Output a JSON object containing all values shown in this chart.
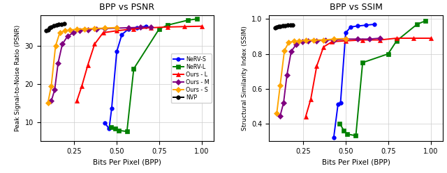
{
  "title_left": "BPP vs PSNR",
  "title_right": "BPP vs SSIM",
  "xlabel": "Bits Per Pixel (BPP)",
  "ylabel_left": "Peak Signal-to-Noise Ratio (PSNR)",
  "ylabel_right": "Structural Similarity Index (SSIM)",
  "nerv_s_bpp": [
    0.43,
    0.455,
    0.47,
    0.5,
    0.53,
    0.57,
    0.62,
    0.67
  ],
  "nerv_s_psnr": [
    9.8,
    8.2,
    13.5,
    28.5,
    33.0,
    34.5,
    34.8,
    35.2
  ],
  "nerv_s_ssim": [
    0.32,
    0.51,
    0.52,
    0.92,
    0.955,
    0.96,
    0.965,
    0.97
  ],
  "nerv_l_bpp": [
    0.465,
    0.49,
    0.51,
    0.56,
    0.6,
    0.75,
    0.8,
    0.92,
    0.97
  ],
  "nerv_l_psnr": [
    8.7,
    8.2,
    7.8,
    7.5,
    24.0,
    34.5,
    35.5,
    36.8,
    37.1
  ],
  "nerv_l_ssim": [
    0.4,
    0.36,
    0.34,
    0.33,
    0.75,
    0.8,
    0.875,
    0.97,
    0.99
  ],
  "ours_l_bpp": [
    0.265,
    0.295,
    0.33,
    0.37,
    0.42,
    0.5,
    0.6,
    0.7,
    0.8,
    0.9,
    1.0
  ],
  "ours_l_psnr": [
    15.5,
    19.5,
    25.0,
    30.5,
    33.5,
    34.0,
    34.5,
    34.8,
    35.0,
    35.1,
    35.2
  ],
  "ours_l_ssim": [
    0.44,
    0.54,
    0.73,
    0.84,
    0.87,
    0.875,
    0.88,
    0.88,
    0.89,
    0.89,
    0.89
  ],
  "ours_m_bpp": [
    0.115,
    0.135,
    0.155,
    0.18,
    0.21,
    0.245,
    0.28,
    0.33,
    0.38,
    0.43,
    0.5,
    0.57,
    0.64,
    0.7
  ],
  "ours_m_psnr": [
    15.5,
    18.5,
    25.5,
    30.5,
    32.5,
    33.5,
    34.0,
    34.3,
    34.5,
    34.6,
    34.7,
    34.8,
    34.9,
    35.0
  ],
  "ours_m_ssim": [
    0.445,
    0.52,
    0.68,
    0.815,
    0.855,
    0.87,
    0.875,
    0.875,
    0.88,
    0.88,
    0.885,
    0.885,
    0.885,
    0.89
  ],
  "ours_s_bpp": [
    0.095,
    0.115,
    0.14,
    0.165,
    0.195,
    0.225,
    0.265,
    0.31,
    0.37,
    0.43,
    0.5
  ],
  "ours_s_psnr": [
    15.0,
    19.5,
    30.0,
    33.5,
    34.0,
    34.2,
    34.4,
    34.5,
    34.6,
    34.7,
    34.85
  ],
  "ours_s_ssim": [
    0.46,
    0.62,
    0.82,
    0.865,
    0.873,
    0.875,
    0.877,
    0.88,
    0.88,
    0.885,
    0.888
  ],
  "nvp_bpp": [
    0.085,
    0.095,
    0.105,
    0.115,
    0.13,
    0.145,
    0.16,
    0.175,
    0.19
  ],
  "nvp_psnr": [
    34.0,
    34.3,
    34.7,
    35.0,
    35.3,
    35.5,
    35.65,
    35.75,
    35.8
  ],
  "nvp_ssim": [
    0.948,
    0.952,
    0.956,
    0.959,
    0.961,
    0.963,
    0.964,
    0.965,
    0.966
  ],
  "colors": {
    "nerv_s": "#0000ff",
    "nerv_l": "#008000",
    "ours_l": "#ff0000",
    "ours_m": "#800080",
    "ours_s": "#ffa500",
    "nvp": "#000000"
  },
  "ylim_left": [
    5,
    38
  ],
  "ylim_right": [
    0.3,
    1.02
  ],
  "xlim": [
    0.05,
    1.07
  ],
  "xticks": [
    0.25,
    0.5,
    0.75,
    1.0
  ],
  "yticks_left": [
    10,
    20,
    30
  ],
  "yticks_right": [
    0.4,
    0.6,
    0.8,
    1.0
  ]
}
